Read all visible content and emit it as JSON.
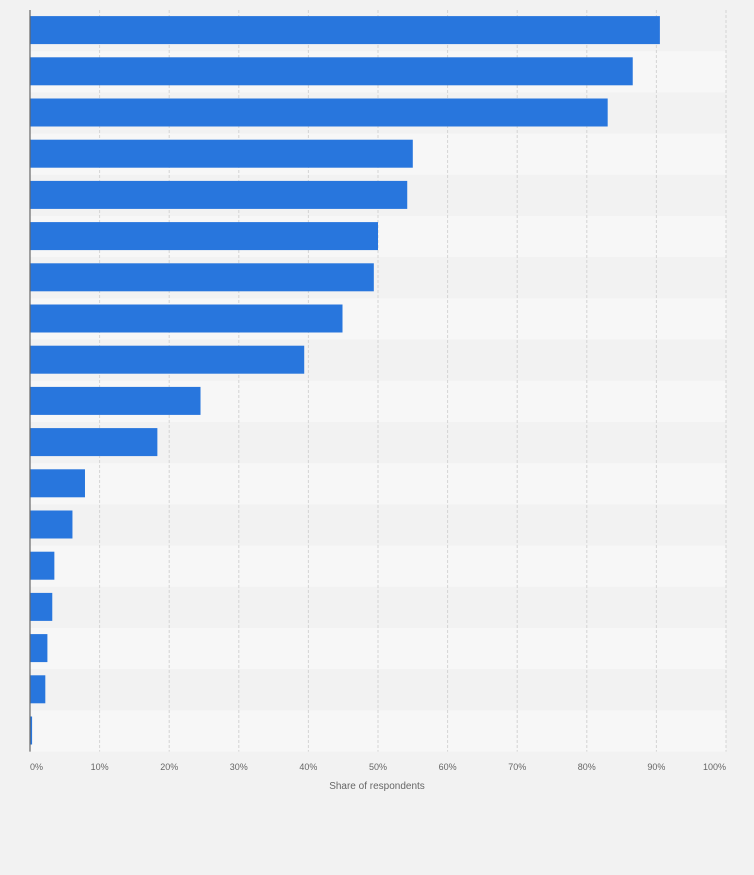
{
  "chart_data": {
    "type": "bar",
    "orientation": "horizontal",
    "title": "",
    "xlabel": "Share of respondents",
    "ylabel": "",
    "xlim": [
      0,
      100
    ],
    "ticks": [
      "0%",
      "10%",
      "20%",
      "30%",
      "40%",
      "50%",
      "60%",
      "70%",
      "80%",
      "90%",
      "100%"
    ],
    "categories": [
      "",
      "",
      "",
      "",
      "",
      "",
      "",
      "",
      "",
      "",
      "",
      "",
      "",
      "",
      "",
      "",
      "",
      ""
    ],
    "values": [
      90.5,
      86.6,
      83.0,
      55.0,
      54.2,
      50.0,
      49.4,
      44.9,
      39.4,
      24.5,
      18.3,
      7.9,
      6.1,
      3.5,
      3.2,
      2.5,
      2.2,
      0.3
    ],
    "colors": {
      "bar": "#2876dd",
      "band_light": "#f7f7f7",
      "band_dark": "#f2f2f2",
      "grid": "#d4d4d4",
      "axis": "#666666",
      "tick_text": "#666666",
      "background": "#f2f2f2"
    },
    "grid": true
  }
}
